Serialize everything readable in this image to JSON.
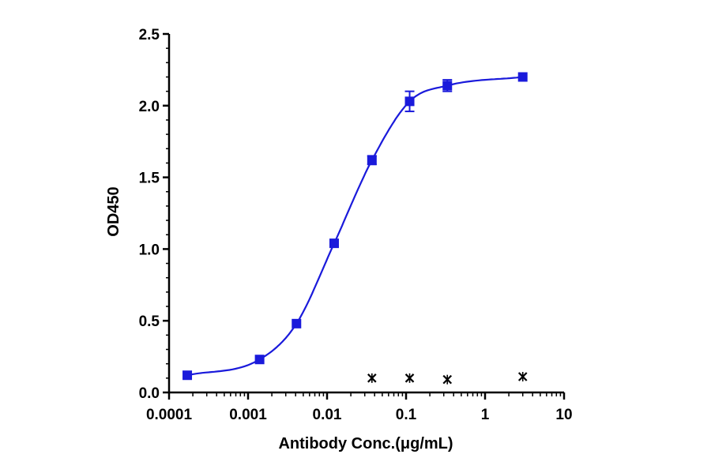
{
  "chart_data": {
    "type": "scatter",
    "xlabel": "Antibody Conc.(μg/mL)",
    "ylabel": "OD450",
    "x_scale": "log",
    "xlim": [
      0.0001,
      10
    ],
    "ylim": [
      0,
      2.5
    ],
    "x_ticks": [
      "0.0001",
      "0.001",
      "0.01",
      "0.1",
      "1",
      "10"
    ],
    "y_ticks": [
      "0.0",
      "0.5",
      "1.0",
      "1.5",
      "2.0",
      "2.5"
    ],
    "grid": false,
    "series": [
      {
        "marker": "square",
        "color": "#1a1adb",
        "fit": "sigmoidal",
        "x": [
          0.00017,
          0.0014,
          0.0041,
          0.0123,
          0.037,
          0.111,
          0.333,
          3.0
        ],
        "y": [
          0.12,
          0.23,
          0.48,
          1.04,
          1.62,
          2.03,
          2.14,
          2.2
        ],
        "error": [
          0.01,
          0.01,
          0.01,
          0.02,
          0.03,
          0.07,
          0.04,
          0.01
        ]
      },
      {
        "marker": "x",
        "color": "#000000",
        "x": [
          0.037,
          0.111,
          0.333,
          3.0
        ],
        "y": [
          0.1,
          0.1,
          0.09,
          0.11
        ]
      }
    ]
  }
}
